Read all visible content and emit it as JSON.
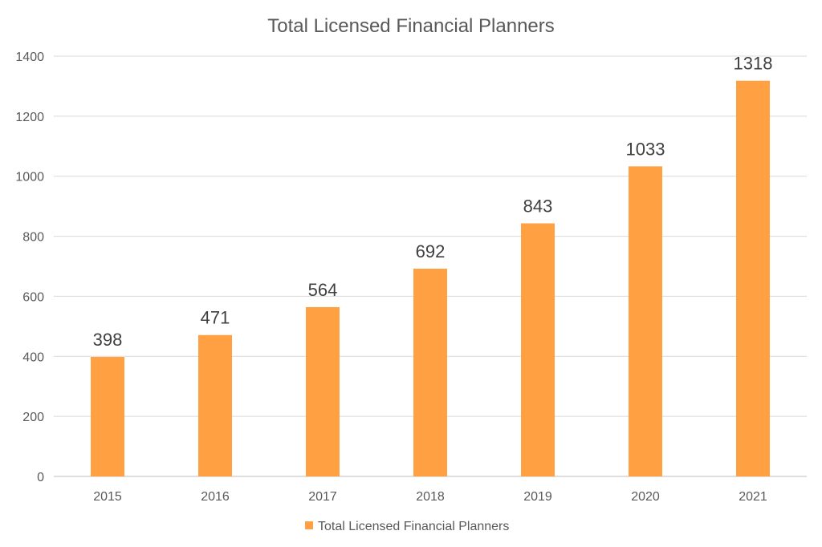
{
  "chart_data": {
    "type": "bar",
    "title": "Total Licensed Financial Planners",
    "categories": [
      "2015",
      "2016",
      "2017",
      "2018",
      "2019",
      "2020",
      "2021"
    ],
    "series": [
      {
        "name": "Total Licensed Financial Planners",
        "values": [
          398,
          471,
          564,
          692,
          843,
          1033,
          1318
        ],
        "color": "#FFA043"
      }
    ],
    "xlabel": "",
    "ylabel": "",
    "ylim": [
      0,
      1400
    ],
    "yticks": [
      0,
      200,
      400,
      600,
      800,
      1000,
      1200,
      1400
    ],
    "grid": true,
    "data_labels": true,
    "legend_position": "bottom"
  }
}
